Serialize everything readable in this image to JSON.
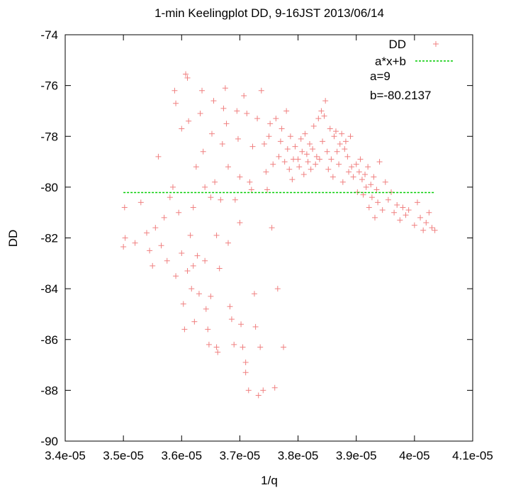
{
  "chart_data": {
    "type": "scatter",
    "title": "1-min Keelingplot DD, 9-16JST 2013/06/14",
    "xlabel": "1/q",
    "ylabel": "DD",
    "xlim": [
      3.4e-05,
      4.1e-05
    ],
    "ylim": [
      -90,
      -74
    ],
    "x_ticks": [
      "3.4e-05",
      "3.5e-05",
      "3.6e-05",
      "3.7e-05",
      "3.8e-05",
      "3.9e-05",
      "4e-05",
      "4.1e-05"
    ],
    "y_ticks": [
      "-90",
      "-88",
      "-86",
      "-84",
      "-82",
      "-80",
      "-78",
      "-76",
      "-74"
    ],
    "legend_position": "top-right",
    "annotations": [
      "a=9",
      "b=-80.2137"
    ],
    "series": [
      {
        "name": "DD",
        "marker": "+",
        "color": "#f08080",
        "points": [
          [
            3.5e-05,
            -82.35
          ],
          [
            3.502e-05,
            -80.8
          ],
          [
            3.503e-05,
            -82.0
          ],
          [
            3.52e-05,
            -82.2
          ],
          [
            3.53e-05,
            -80.6
          ],
          [
            3.54e-05,
            -81.8
          ],
          [
            3.545e-05,
            -82.5
          ],
          [
            3.55e-05,
            -83.1
          ],
          [
            3.555e-05,
            -81.6
          ],
          [
            3.56e-05,
            -78.8
          ],
          [
            3.565e-05,
            -82.3
          ],
          [
            3.57e-05,
            -81.2
          ],
          [
            3.575e-05,
            -82.9
          ],
          [
            3.58e-05,
            -80.4
          ],
          [
            3.585e-05,
            -80.0
          ],
          [
            3.588e-05,
            -76.2
          ],
          [
            3.59e-05,
            -76.7
          ],
          [
            3.59e-05,
            -83.5
          ],
          [
            3.595e-05,
            -81.0
          ],
          [
            3.6e-05,
            -82.6
          ],
          [
            3.6e-05,
            -77.7
          ],
          [
            3.603e-05,
            -84.6
          ],
          [
            3.605e-05,
            -85.6
          ],
          [
            3.607e-05,
            -75.55
          ],
          [
            3.61e-05,
            -75.7
          ],
          [
            3.61e-05,
            -83.3
          ],
          [
            3.612e-05,
            -77.4
          ],
          [
            3.615e-05,
            -81.9
          ],
          [
            3.617e-05,
            -84.0
          ],
          [
            3.62e-05,
            -80.8
          ],
          [
            3.62e-05,
            -83.1
          ],
          [
            3.622e-05,
            -85.3
          ],
          [
            3.625e-05,
            -79.2
          ],
          [
            3.627e-05,
            -82.7
          ],
          [
            3.63e-05,
            -84.2
          ],
          [
            3.632e-05,
            -77.1
          ],
          [
            3.635e-05,
            -76.2
          ],
          [
            3.637e-05,
            -78.6
          ],
          [
            3.64e-05,
            -80.0
          ],
          [
            3.64e-05,
            -82.9
          ],
          [
            3.642e-05,
            -84.8
          ],
          [
            3.645e-05,
            -85.6
          ],
          [
            3.647e-05,
            -86.2
          ],
          [
            3.65e-05,
            -84.3
          ],
          [
            3.65e-05,
            -80.4
          ],
          [
            3.652e-05,
            -77.9
          ],
          [
            3.655e-05,
            -76.6
          ],
          [
            3.657e-05,
            -79.8
          ],
          [
            3.66e-05,
            -81.9
          ],
          [
            3.66e-05,
            -86.3
          ],
          [
            3.662e-05,
            -86.5
          ],
          [
            3.665e-05,
            -83.2
          ],
          [
            3.667e-05,
            -80.5
          ],
          [
            3.67e-05,
            -78.3
          ],
          [
            3.672e-05,
            -76.9
          ],
          [
            3.675e-05,
            -76.1
          ],
          [
            3.677e-05,
            -77.5
          ],
          [
            3.68e-05,
            -79.2
          ],
          [
            3.68e-05,
            -82.2
          ],
          [
            3.683e-05,
            -84.7
          ],
          [
            3.686e-05,
            -85.2
          ],
          [
            3.69e-05,
            -86.2
          ],
          [
            3.692e-05,
            -80.5
          ],
          [
            3.695e-05,
            -77.0
          ],
          [
            3.697e-05,
            -78.1
          ],
          [
            3.7e-05,
            -79.6
          ],
          [
            3.7e-05,
            -81.4
          ],
          [
            3.702e-05,
            -85.4
          ],
          [
            3.705e-05,
            -86.3
          ],
          [
            3.707e-05,
            -76.4
          ],
          [
            3.71e-05,
            -86.9
          ],
          [
            3.71e-05,
            -87.3
          ],
          [
            3.712e-05,
            -77.1
          ],
          [
            3.715e-05,
            -88.0
          ],
          [
            3.717e-05,
            -79.8
          ],
          [
            3.72e-05,
            -80.1
          ],
          [
            3.722e-05,
            -78.4
          ],
          [
            3.725e-05,
            -84.2
          ],
          [
            3.727e-05,
            -85.5
          ],
          [
            3.73e-05,
            -77.3
          ],
          [
            3.732e-05,
            -88.2
          ],
          [
            3.735e-05,
            -86.3
          ],
          [
            3.737e-05,
            -76.2
          ],
          [
            3.74e-05,
            -88.0
          ],
          [
            3.742e-05,
            -78.3
          ],
          [
            3.745e-05,
            -79.4
          ],
          [
            3.747e-05,
            -80.1
          ],
          [
            3.75e-05,
            -78.0
          ],
          [
            3.752e-05,
            -77.5
          ],
          [
            3.755e-05,
            -81.6
          ],
          [
            3.757e-05,
            -79.1
          ],
          [
            3.76e-05,
            -87.9
          ],
          [
            3.762e-05,
            -77.3
          ],
          [
            3.765e-05,
            -84.0
          ],
          [
            3.767e-05,
            -78.8
          ],
          [
            3.77e-05,
            -78.2
          ],
          [
            3.772e-05,
            -77.7
          ],
          [
            3.775e-05,
            -86.3
          ],
          [
            3.777e-05,
            -79.0
          ],
          [
            3.78e-05,
            -77.0
          ],
          [
            3.782e-05,
            -78.5
          ],
          [
            3.785e-05,
            -79.3
          ],
          [
            3.787e-05,
            -78.0
          ],
          [
            3.79e-05,
            -79.7
          ],
          [
            3.792e-05,
            -78.9
          ],
          [
            3.795e-05,
            -78.4
          ],
          [
            3.8e-05,
            -78.9
          ],
          [
            3.802e-05,
            -79.2
          ],
          [
            3.805e-05,
            -78.1
          ],
          [
            3.807e-05,
            -78.6
          ],
          [
            3.81e-05,
            -79.5
          ],
          [
            3.812e-05,
            -77.9
          ],
          [
            3.815e-05,
            -78.7
          ],
          [
            3.817e-05,
            -79.0
          ],
          [
            3.82e-05,
            -78.3
          ],
          [
            3.822e-05,
            -79.3
          ],
          [
            3.825e-05,
            -78.5
          ],
          [
            3.827e-05,
            -77.6
          ],
          [
            3.83e-05,
            -79.1
          ],
          [
            3.832e-05,
            -78.8
          ],
          [
            3.835e-05,
            -77.3
          ],
          [
            3.837e-05,
            -78.9
          ],
          [
            3.84e-05,
            -77.0
          ],
          [
            3.842e-05,
            -78.2
          ],
          [
            3.845e-05,
            -77.2
          ],
          [
            3.847e-05,
            -76.6
          ],
          [
            3.85e-05,
            -78.6
          ],
          [
            3.852e-05,
            -79.3
          ],
          [
            3.855e-05,
            -77.7
          ],
          [
            3.857e-05,
            -78.9
          ],
          [
            3.86e-05,
            -79.6
          ],
          [
            3.862e-05,
            -78.0
          ],
          [
            3.865e-05,
            -77.8
          ],
          [
            3.867e-05,
            -78.6
          ],
          [
            3.87e-05,
            -79.1
          ],
          [
            3.872e-05,
            -78.3
          ],
          [
            3.875e-05,
            -77.9
          ],
          [
            3.877e-05,
            -79.8
          ],
          [
            3.88e-05,
            -78.5
          ],
          [
            3.882e-05,
            -78.2
          ],
          [
            3.885e-05,
            -78.8
          ],
          [
            3.887e-05,
            -79.4
          ],
          [
            3.89e-05,
            -78.0
          ],
          [
            3.892e-05,
            -79.2
          ],
          [
            3.895e-05,
            -79.6
          ],
          [
            3.9e-05,
            -79.1
          ],
          [
            3.902e-05,
            -80.2
          ],
          [
            3.905e-05,
            -79.4
          ],
          [
            3.907e-05,
            -78.9
          ],
          [
            3.91e-05,
            -79.7
          ],
          [
            3.912e-05,
            -80.3
          ],
          [
            3.915e-05,
            -79.5
          ],
          [
            3.917e-05,
            -80.0
          ],
          [
            3.92e-05,
            -79.2
          ],
          [
            3.922e-05,
            -80.8
          ],
          [
            3.925e-05,
            -79.9
          ],
          [
            3.927e-05,
            -80.4
          ],
          [
            3.93e-05,
            -79.6
          ],
          [
            3.932e-05,
            -81.2
          ],
          [
            3.935e-05,
            -80.1
          ],
          [
            3.937e-05,
            -80.6
          ],
          [
            3.94e-05,
            -79.0
          ],
          [
            3.945e-05,
            -80.9
          ],
          [
            3.95e-05,
            -79.8
          ],
          [
            3.955e-05,
            -80.5
          ],
          [
            3.96e-05,
            -80.2
          ],
          [
            3.965e-05,
            -81.0
          ],
          [
            3.97e-05,
            -80.7
          ],
          [
            3.975e-05,
            -81.3
          ],
          [
            3.98e-05,
            -80.8
          ],
          [
            3.985e-05,
            -81.1
          ],
          [
            3.99e-05,
            -80.9
          ],
          [
            4e-05,
            -81.5
          ],
          [
            4.005e-05,
            -80.6
          ],
          [
            4.01e-05,
            -81.2
          ],
          [
            4.015e-05,
            -81.7
          ],
          [
            4.02e-05,
            -81.4
          ],
          [
            4.025e-05,
            -81.0
          ],
          [
            4.03e-05,
            -81.6
          ],
          [
            4.035e-05,
            -81.7
          ]
        ]
      },
      {
        "name": "a*x+b",
        "type": "line",
        "style": "dashed",
        "color": "#00cc00",
        "x": [
          3.5e-05,
          4.035e-05
        ],
        "y": [
          -80.2134,
          -80.2134
        ]
      }
    ]
  }
}
